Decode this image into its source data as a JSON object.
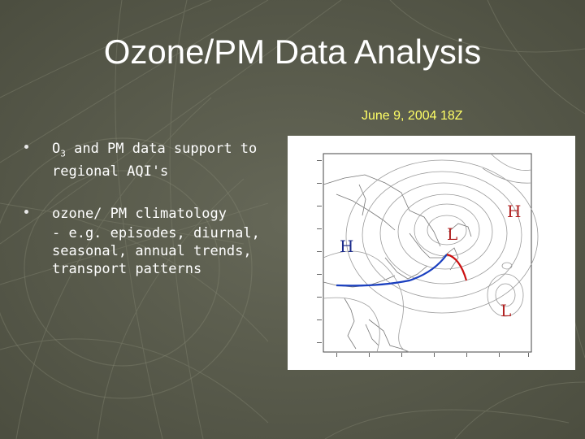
{
  "slide": {
    "title": "Ozone/PM Data Analysis",
    "date_caption": "June 9, 2004 18Z"
  },
  "bullets": {
    "item1": {
      "prefix": "O",
      "sub": "3",
      "text": " and PM data support to regional AQI's"
    },
    "item2": {
      "text": "ozone/ PM climatology",
      "detail": "- e.g. episodes, diurnal, seasonal, annual trends, transport patterns"
    }
  },
  "weather_map": {
    "pressure_labels": [
      {
        "text": "H",
        "color": "#1a2a8a"
      },
      {
        "text": "L",
        "color": "#b02020"
      },
      {
        "text": "H",
        "color": "#b02020"
      },
      {
        "text": "L",
        "color": "#b02020"
      }
    ],
    "cold_front_color": "#1a3fbf",
    "warm_front_color": "#cc1111"
  },
  "colors": {
    "background": "#5b5d4e",
    "title": "#ffffff",
    "date": "#ffff66"
  }
}
